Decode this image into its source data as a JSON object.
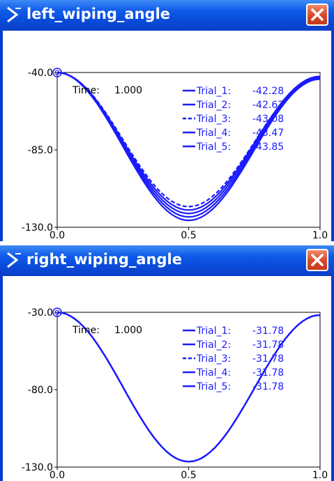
{
  "windows": [
    {
      "title": "left_wiping_angle",
      "icon": "plot-icon",
      "close_icon": "close-icon",
      "time_label": "Time:",
      "time_value": "1.000",
      "chart_data": {
        "type": "line",
        "x_ticks": [
          "0.0",
          "0.5",
          "1.0"
        ],
        "y_ticks": [
          "-40.0",
          "-85.0",
          "-130.0"
        ],
        "xlim": [
          0.0,
          1.0
        ],
        "ylim": [
          -130.0,
          -40.0
        ],
        "grid": false,
        "legend_placement": "top-right",
        "line_color": "#1a1aff",
        "series": [
          {
            "name": "Trial_1",
            "value": "-42.28",
            "min": -120.0,
            "end": -42.28,
            "dash": "solid"
          },
          {
            "name": "Trial_2",
            "value": "-42.67",
            "min": -122.0,
            "end": -42.67,
            "dash": "solid"
          },
          {
            "name": "Trial_3",
            "value": "-43.08",
            "min": -118.0,
            "end": -43.08,
            "dash": "dashed"
          },
          {
            "name": "Trial_4",
            "value": "-43.47",
            "min": -124.0,
            "end": -43.47,
            "dash": "solid"
          },
          {
            "name": "Trial_5",
            "value": "-43.85",
            "min": -126.0,
            "end": -43.85,
            "dash": "solid"
          }
        ]
      }
    },
    {
      "title": "right_wiping_angle",
      "icon": "plot-icon",
      "close_icon": "close-icon",
      "time_label": "Time:",
      "time_value": "1.000",
      "chart_data": {
        "type": "line",
        "x_ticks": [
          "0.0",
          "0.5",
          "1.0"
        ],
        "y_ticks": [
          "-30.0",
          "-80.0",
          "-130.0"
        ],
        "xlim": [
          0.0,
          1.0
        ],
        "ylim": [
          -130.0,
          -30.0
        ],
        "grid": false,
        "legend_placement": "top-right",
        "line_color": "#1a1aff",
        "series": [
          {
            "name": "Trial_1",
            "value": "-31.78",
            "min": -126.5,
            "end": -31.78,
            "dash": "solid"
          },
          {
            "name": "Trial_2",
            "value": "-31.78",
            "min": -126.5,
            "end": -31.78,
            "dash": "solid"
          },
          {
            "name": "Trial_3",
            "value": "-31.78",
            "min": -126.5,
            "end": -31.78,
            "dash": "dashed"
          },
          {
            "name": "Trial_4",
            "value": "-31.78",
            "min": -126.5,
            "end": -31.78,
            "dash": "solid"
          },
          {
            "name": "Trial_5",
            "value": "-31.78",
            "min": -126.5,
            "end": -31.78,
            "dash": "solid"
          }
        ]
      }
    }
  ]
}
